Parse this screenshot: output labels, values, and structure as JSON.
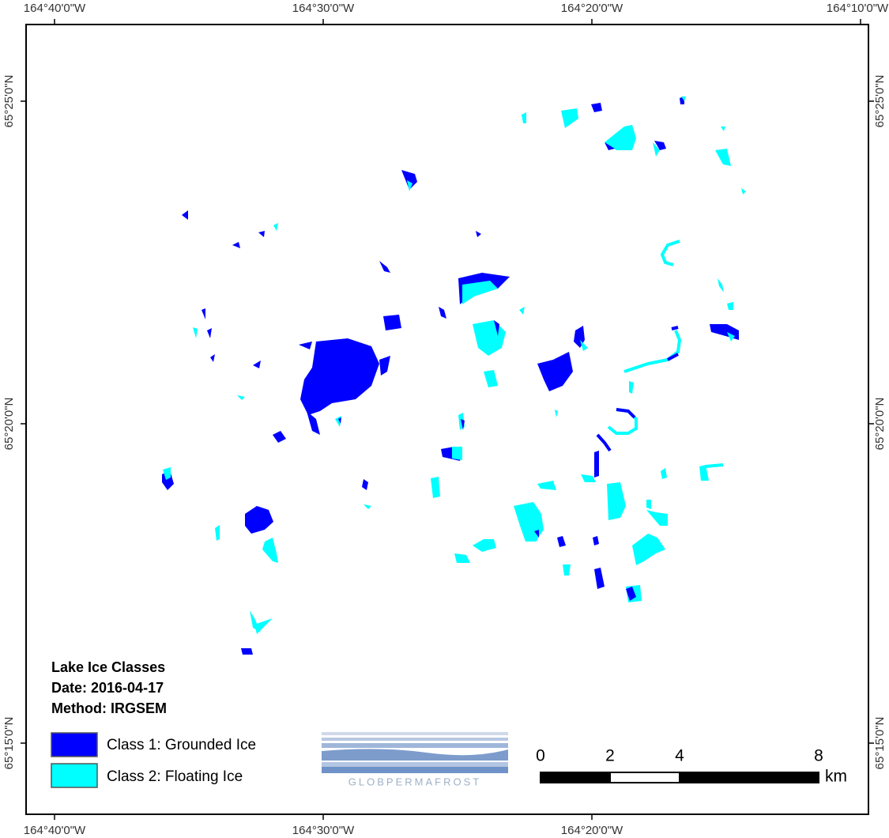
{
  "map": {
    "graticule": {
      "top": [
        "164°40'0\"W",
        "164°30'0\"W",
        "164°20'0\"W",
        "164°10'0\"W"
      ],
      "bottom": [
        "164°40'0\"W",
        "164°30'0\"W",
        "164°20'0\"W"
      ],
      "left": [
        "65°25'0\"N",
        "65°20'0\"N",
        "65°15'0\"N"
      ],
      "right": [
        "65°25'0\"N",
        "65°20'0\"N",
        "65°15'0\"N"
      ]
    },
    "legend": {
      "title_lines": [
        "Lake Ice Classes",
        "Date: 2016-04-17",
        "Method: IRGSEM"
      ],
      "classes": [
        {
          "label": "Class 1: Grounded Ice",
          "color": "#0000ff"
        },
        {
          "label": "Class 2: Floating Ice",
          "color": "#00ffff"
        }
      ]
    },
    "scale_bar": {
      "ticks": [
        0,
        2,
        4,
        8
      ],
      "unit": "km"
    },
    "logo": "GLOBPERMAFROST"
  }
}
